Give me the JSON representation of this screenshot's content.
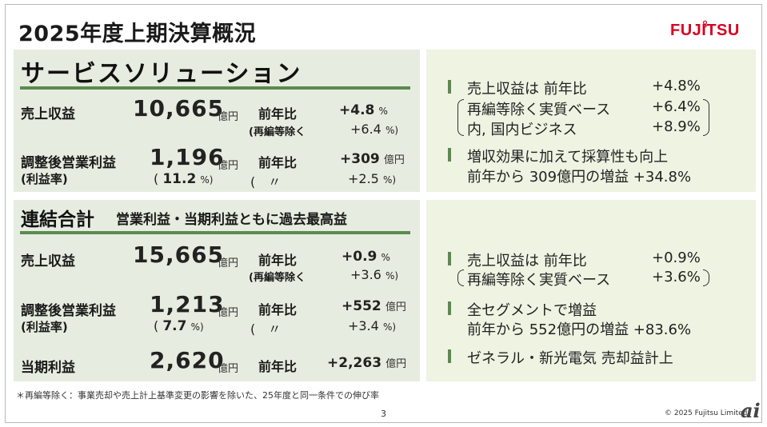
{
  "title": "2025年度上期決算概況",
  "logo": {
    "text": "FUJITSU",
    "color": "#d8001f"
  },
  "colors": {
    "panel": "#e6ecdf",
    "panel_right": "#eef3e2",
    "accent": "#5b8a4f"
  },
  "services": {
    "heading": "サービスソリューション",
    "revenue": {
      "label": "売上収益",
      "value": "10,665",
      "unit": "億円",
      "yoy_label": "前年比",
      "yoy_value": "+4.8",
      "yoy_unit": "%",
      "sub_label": "(再編等除く",
      "sub_value": "+6.4",
      "sub_unit": "%)"
    },
    "profit": {
      "label": "調整後営業利益",
      "value": "1,196",
      "unit": "億円",
      "yoy_label": "前年比",
      "yoy_value": "+309",
      "yoy_unit": "億円",
      "margin_label": "(利益率)",
      "margin_open": "(",
      "margin_value": "11.2",
      "margin_unit": "%)",
      "ditto": "(　〃",
      "margin_yoy": "+2.5",
      "margin_yoy_unit": "%)"
    },
    "notes": [
      {
        "bullet": true,
        "text": "売上収益は 前年比",
        "value": "+4.8%"
      },
      {
        "bullet": false,
        "text": "再編等除く実質ベース",
        "value": "+6.4%"
      },
      {
        "bullet": false,
        "text": "内, 国内ビジネス",
        "value": "+8.9%"
      },
      {
        "bullet": true,
        "text": "増収効果に加えて採算性も向上",
        "value": ""
      },
      {
        "bullet": false,
        "text": "前年から 309億円の増益 +34.8%",
        "value": ""
      }
    ]
  },
  "consolidated": {
    "heading": "連結合計",
    "subheading": "営業利益・当期利益ともに過去最高益",
    "revenue": {
      "label": "売上収益",
      "value": "15,665",
      "unit": "億円",
      "yoy_label": "前年比",
      "yoy_value": "+0.9",
      "yoy_unit": "%",
      "sub_label": "(再編等除く",
      "sub_value": "+3.6",
      "sub_unit": "%)"
    },
    "profit": {
      "label": "調整後営業利益",
      "value": "1,213",
      "unit": "億円",
      "yoy_label": "前年比",
      "yoy_value": "+552",
      "yoy_unit": "億円",
      "margin_label": "(利益率)",
      "margin_open": "(",
      "margin_value": "7.7",
      "margin_unit": "%)",
      "ditto": "(　〃",
      "margin_yoy": "+3.4",
      "margin_yoy_unit": "%)"
    },
    "net": {
      "label": "当期利益",
      "value": "2,620",
      "unit": "億円",
      "yoy_label": "前年比",
      "yoy_value": "+2,263",
      "yoy_unit": "億円"
    },
    "notes": [
      {
        "bullet": true,
        "text": "売上収益は 前年比",
        "value": "+0.9%"
      },
      {
        "bullet": false,
        "text": "再編等除く実質ベース",
        "value": "+3.6%"
      },
      {
        "bullet": true,
        "text": "全セグメントで増益",
        "value": ""
      },
      {
        "bullet": false,
        "text": "前年から 552億円の増益 +83.6%",
        "value": ""
      },
      {
        "bullet": true,
        "text": "ゼネラル・新光電気 売却益計上",
        "value": ""
      }
    ]
  },
  "footnote": "＊再編等除く：事業売却や売上計上基準変更の影響を除いた、25年度と同一条件での伸び率",
  "page_number": "3",
  "copyright": "© 2025 Fujitsu Limited",
  "watermark": "ai"
}
